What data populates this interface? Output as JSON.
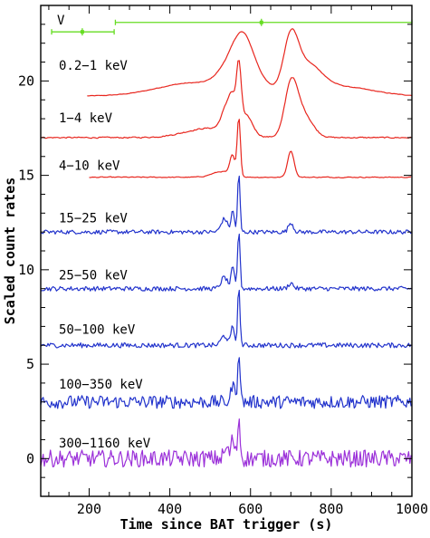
{
  "chart_data": {
    "type": "line",
    "title": "",
    "xlabel": "Time since BAT trigger (s)",
    "ylabel": "Scaled count rates",
    "xlim": [
      80,
      1000
    ],
    "ylim": [
      -2,
      24
    ],
    "x_ticks": [
      200,
      400,
      600,
      800,
      1000
    ],
    "y_ticks": [
      0,
      5,
      10,
      15,
      20
    ],
    "grid": false,
    "colors": {
      "xrt": "#e8261e",
      "bat": "#2233cc",
      "gbm": "#9b30d9",
      "uvot": "#66dd22",
      "axis": "#000000"
    },
    "uvot": {
      "label": "V",
      "points": [
        {
          "x": 183,
          "x_lo": 107,
          "x_hi": 262,
          "y": 22.6
        },
        {
          "x": 627,
          "x_lo": 265,
          "x_hi": 1000,
          "y": 23.1
        }
      ]
    },
    "series": [
      {
        "name": "0.2−1 keV",
        "color": "#e8261e",
        "start": 195,
        "end": 1000,
        "baseline": 19.2,
        "noise": 0.03,
        "roughness": 0.5,
        "peaks": [
          [
            460,
            0.7,
            90
          ],
          [
            545,
            1.0,
            28
          ],
          [
            580,
            2.1,
            24
          ],
          [
            610,
            0.9,
            30
          ],
          [
            700,
            2.6,
            18
          ],
          [
            740,
            1.4,
            35
          ],
          [
            820,
            0.5,
            80
          ]
        ],
        "label_x": 65,
        "label_y": 20.6
      },
      {
        "name": "1−4 keV",
        "color": "#e8261e",
        "start": 80,
        "end": 1000,
        "baseline": 17.0,
        "noise": 0.05,
        "roughness": 0.6,
        "peaks": [
          [
            500,
            0.5,
            60
          ],
          [
            540,
            1.2,
            12
          ],
          [
            555,
            1.4,
            8
          ],
          [
            571,
            3.2,
            6
          ],
          [
            590,
            1.0,
            15
          ],
          [
            700,
            2.3,
            15
          ],
          [
            725,
            1.4,
            25
          ]
        ],
        "label_x": 65,
        "label_y": 17.8
      },
      {
        "name": "4−10 keV",
        "color": "#e8261e",
        "start": 200,
        "end": 1000,
        "baseline": 14.9,
        "noise": 0.04,
        "roughness": 0.5,
        "peaks": [
          [
            530,
            0.3,
            25
          ],
          [
            555,
            1.0,
            6
          ],
          [
            571,
            3.1,
            4
          ],
          [
            700,
            1.4,
            8
          ]
        ],
        "label_x": 65,
        "label_y": 15.3
      },
      {
        "name": "15−25 keV",
        "color": "#2233cc",
        "start": 80,
        "end": 1000,
        "baseline": 12.0,
        "noise": 0.11,
        "roughness": 1,
        "peaks": [
          [
            535,
            0.7,
            8
          ],
          [
            556,
            1.1,
            4
          ],
          [
            571,
            3.1,
            3
          ],
          [
            700,
            0.5,
            6
          ]
        ],
        "label_x": 65,
        "label_y": 12.5
      },
      {
        "name": "25−50 keV",
        "color": "#2233cc",
        "start": 80,
        "end": 1000,
        "baseline": 9.0,
        "noise": 0.12,
        "roughness": 1,
        "peaks": [
          [
            535,
            0.6,
            8
          ],
          [
            556,
            1.1,
            4
          ],
          [
            571,
            3.1,
            3
          ],
          [
            700,
            0.3,
            6
          ]
        ],
        "label_x": 65,
        "label_y": 9.5
      },
      {
        "name": "50−100 keV",
        "color": "#2233cc",
        "start": 80,
        "end": 1000,
        "baseline": 6.0,
        "noise": 0.13,
        "roughness": 1,
        "peaks": [
          [
            535,
            0.5,
            8
          ],
          [
            556,
            1.0,
            4
          ],
          [
            571,
            3.0,
            3
          ]
        ],
        "label_x": 65,
        "label_y": 6.6
      },
      {
        "name": "100−350 keV",
        "color": "#2233cc",
        "start": 80,
        "end": 1000,
        "baseline": 3.0,
        "noise": 0.35,
        "roughness": 1,
        "peaks": [
          [
            556,
            1.0,
            4
          ],
          [
            571,
            2.8,
            3
          ]
        ],
        "label_x": 65,
        "label_y": 3.7
      },
      {
        "name": "300−1160 keV",
        "color": "#9b30d9",
        "start": 80,
        "end": 1000,
        "baseline": 0.0,
        "noise": 0.45,
        "roughness": 1,
        "peaks": [
          [
            540,
            0.5,
            6
          ],
          [
            556,
            1.0,
            4
          ],
          [
            571,
            2.2,
            3
          ]
        ],
        "label_x": 65,
        "label_y": 0.6
      }
    ]
  }
}
